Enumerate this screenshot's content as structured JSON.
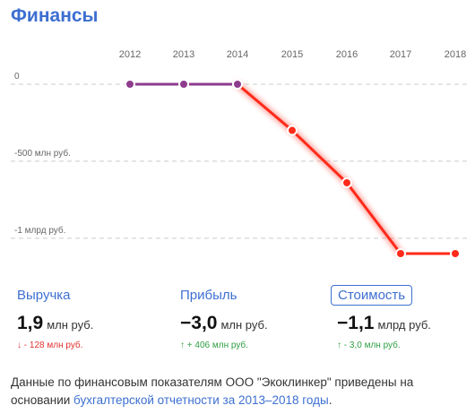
{
  "section_title": "Финансы",
  "chart_data": {
    "type": "line",
    "categories": [
      "2012",
      "2013",
      "2014",
      "2015",
      "2016",
      "2017",
      "2018"
    ],
    "x_label_positions_note": "",
    "series": [
      {
        "values": [
          0,
          0,
          0,
          -0.3,
          -0.64,
          -1.1,
          -1.1
        ],
        "segment_colors": [
          "#8e3c8e",
          "#8e3c8e",
          "#ff2a1a",
          "#ff2a1a",
          "#ff2a1a",
          "#ff2a1a"
        ]
      }
    ],
    "value_unit": "млрд руб.",
    "ylim": [
      -1.1,
      0
    ],
    "yticks": [
      {
        "value": 0,
        "label": "0"
      },
      {
        "value": -0.5,
        "label": "-500 млн руб."
      },
      {
        "value": -1.0,
        "label": "-1 млрд руб."
      }
    ],
    "grid": true,
    "title": "",
    "xlabel": "",
    "ylabel": "",
    "colors": {
      "profit_line": "#ff2a1a",
      "flat_line": "#8e3c8e",
      "grid": "#cccccc"
    }
  },
  "metrics": [
    {
      "label": "Выручка",
      "value": "1,9",
      "unit": "млн руб.",
      "arrow": "↓",
      "delta": "- 128 млн руб.",
      "trend": "neg",
      "active": false
    },
    {
      "label": "Прибыль",
      "value": "−3,0",
      "unit": "млн руб.",
      "arrow": "↑",
      "delta": "+ 406 млн руб.",
      "trend": "pos",
      "active": false
    },
    {
      "label": "Стоимость",
      "value": "−1,1",
      "unit": "млрд руб.",
      "arrow": "↑",
      "delta": "- 3,0 млн руб.",
      "trend": "pos",
      "active": true
    }
  ],
  "note": {
    "text_before": "Данные по финансовым показателям ООО \"Экоклинкер\" приведены на основании ",
    "link_text": "бухгалтерской отчетности за 2013–2018 годы",
    "text_after": "."
  }
}
